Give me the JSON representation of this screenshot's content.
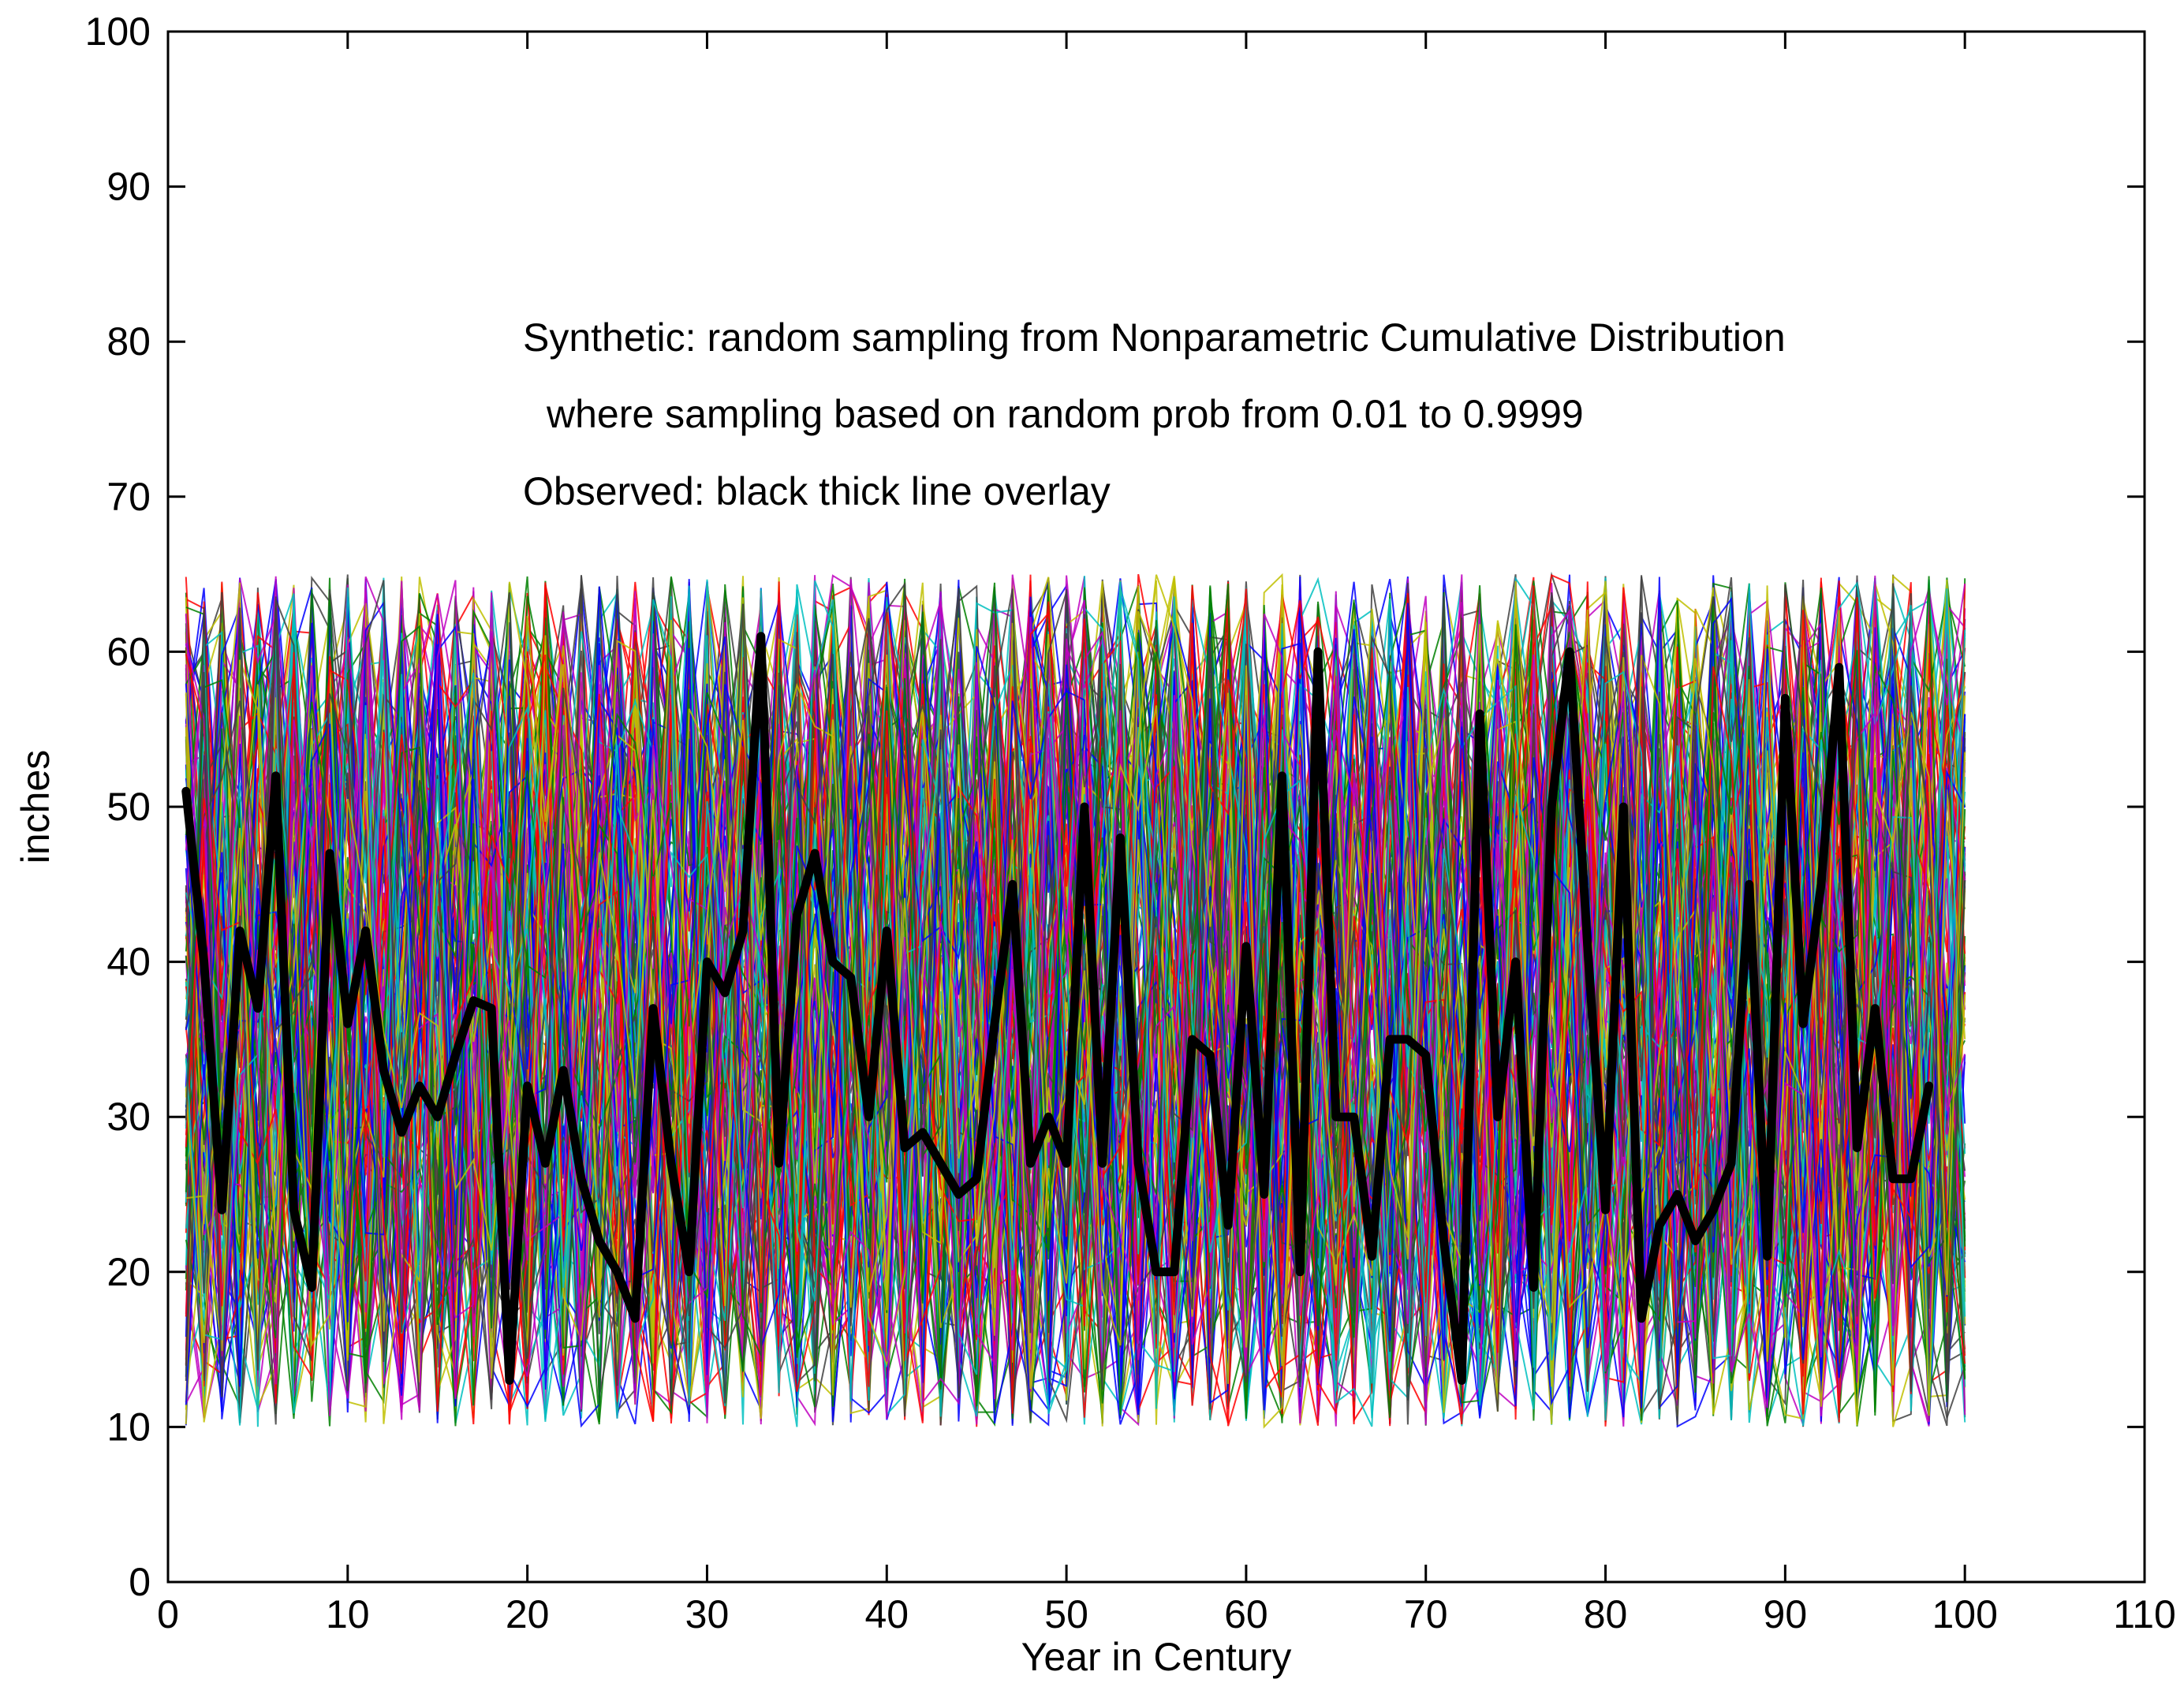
{
  "chart_data": {
    "type": "line",
    "title": "",
    "xlabel": "Year in Century",
    "ylabel": "inches",
    "xlim": [
      0,
      110
    ],
    "ylim": [
      0,
      100
    ],
    "xticks": [
      0,
      10,
      20,
      30,
      40,
      50,
      60,
      70,
      80,
      90,
      100,
      110
    ],
    "yticks": [
      0,
      10,
      20,
      30,
      40,
      50,
      60,
      70,
      80,
      90,
      100
    ],
    "grid": false,
    "annotations": [
      "Synthetic:  random sampling from Nonparametric Cumulative Distribution",
      "where sampling based on random prob from 0.01 to 0.9999",
      "Observed:  black thick line overlay"
    ],
    "synthetic_band": {
      "description_range": [
        10,
        65
      ],
      "x_range": [
        1,
        100
      ],
      "colors": [
        "#0000ff",
        "#008000",
        "#ff0000",
        "#00bfbf",
        "#bf00bf",
        "#bfbf00",
        "#404040"
      ]
    },
    "series": [
      {
        "color": "#000000",
        "x": [
          1,
          2,
          3,
          4,
          5,
          6,
          7,
          8,
          9,
          10,
          11,
          12,
          13,
          14,
          15,
          16,
          17,
          18,
          19,
          20,
          21,
          22,
          23,
          24,
          25,
          26,
          27,
          28,
          29,
          30,
          31,
          32,
          33,
          34,
          35,
          36,
          37,
          38,
          39,
          40,
          41,
          42,
          43,
          44,
          45,
          46,
          47,
          48,
          49,
          50,
          51,
          52,
          53,
          54,
          55,
          56,
          57,
          58,
          59,
          60,
          61,
          62,
          63,
          64,
          65,
          66,
          67,
          68,
          69,
          70,
          71,
          72,
          73,
          74,
          75,
          76,
          77,
          78,
          79,
          80,
          81,
          82,
          83,
          84,
          85,
          86,
          87,
          88,
          89,
          90,
          91,
          92,
          93,
          94,
          95,
          96,
          97,
          98
        ],
        "values": [
          51,
          40,
          24,
          42,
          37,
          52,
          24,
          19,
          47,
          36,
          42,
          33,
          29,
          32,
          30,
          34,
          37.5,
          37,
          13,
          32,
          27,
          33,
          26,
          22,
          20,
          17,
          37,
          27,
          20,
          40,
          38,
          42,
          61,
          27,
          43,
          47,
          40,
          39,
          30,
          42,
          28,
          29,
          27,
          25,
          26,
          36,
          45,
          27,
          30,
          27,
          50,
          27,
          48,
          27,
          20,
          20,
          35,
          34,
          23,
          41,
          25,
          52,
          20,
          60,
          30,
          30,
          21,
          35,
          35,
          34,
          22,
          13,
          56,
          30,
          40,
          19,
          50,
          60,
          41,
          24,
          50,
          17,
          23,
          25,
          22,
          24,
          27,
          45,
          21,
          57,
          36,
          45,
          59,
          28,
          37,
          26,
          26,
          32
        ]
      }
    ]
  }
}
